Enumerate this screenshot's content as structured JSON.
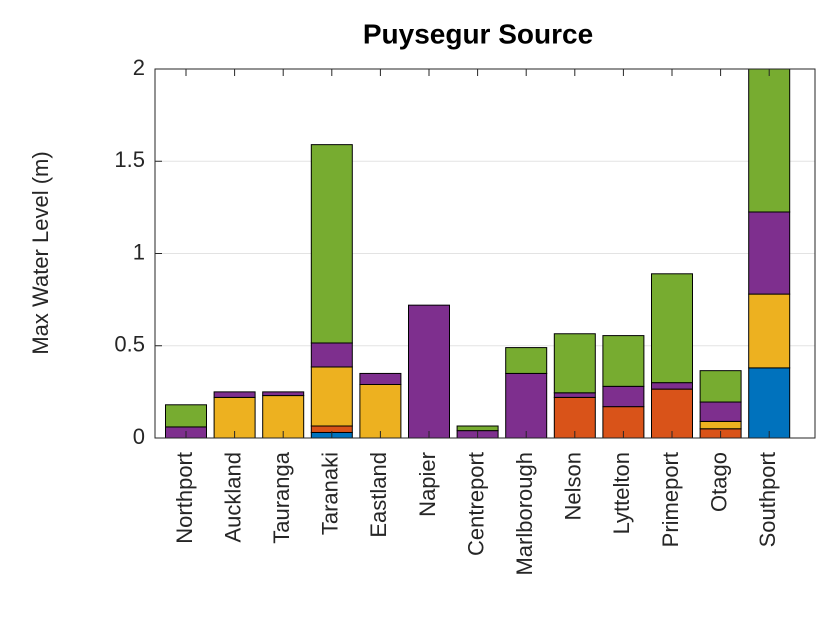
{
  "chart_data": {
    "type": "stacked_bar",
    "title": "Puysegur Source",
    "ylabel": "Max Water Level (m)",
    "categories": [
      "Northport",
      "Auckland",
      "Tauranga",
      "Taranaki",
      "Eastland",
      "Napier",
      "Centreport",
      "Marlborough",
      "Nelson",
      "Lyttelton",
      "Primeport",
      "Otago",
      "Southport"
    ],
    "series": [
      {
        "color": "#0072BD",
        "values": [
          0,
          0,
          0,
          0.03,
          0,
          0,
          0,
          0,
          0,
          0,
          0,
          0,
          0.38
        ]
      },
      {
        "color": "#D95319",
        "values": [
          0,
          0,
          0,
          0.035,
          0,
          0,
          0,
          0,
          0.22,
          0.17,
          0.265,
          0.05,
          0
        ]
      },
      {
        "color": "#EDB120",
        "values": [
          0,
          0.22,
          0.23,
          0.32,
          0.29,
          0,
          0,
          0,
          0,
          0,
          0,
          0.04,
          0.4
        ]
      },
      {
        "color": "#7E2F8E",
        "values": [
          0.06,
          0.03,
          0.02,
          0.13,
          0.06,
          0.72,
          0.04,
          0.35,
          0.025,
          0.11,
          0.035,
          0.105,
          0.445
        ]
      },
      {
        "color": "#77AC30",
        "values": [
          0.12,
          0,
          0,
          1.075,
          0,
          0,
          0.025,
          0.14,
          0.32,
          0.275,
          0.59,
          0.17,
          0.775
        ]
      }
    ],
    "ylim": [
      0,
      2
    ],
    "yticks": [
      0,
      0.5,
      1,
      1.5,
      2
    ],
    "grid": true
  }
}
